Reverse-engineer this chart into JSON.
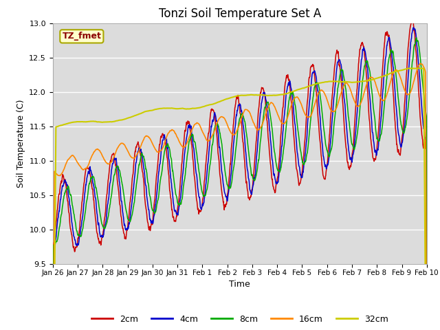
{
  "title": "Tonzi Soil Temperature Set A",
  "xlabel": "Time",
  "ylabel": "Soil Temperature (C)",
  "ylim": [
    9.5,
    13.0
  ],
  "colors": {
    "2cm": "#cc0000",
    "4cm": "#0000cc",
    "8cm": "#00aa00",
    "16cm": "#ff8800",
    "32cm": "#cccc00"
  },
  "plot_bg": "#dcdcdc",
  "annotation_text": "TZ_fmet",
  "annotation_color": "#8b0000",
  "annotation_bg": "#ffffcc",
  "tick_labels": [
    "Jan 26",
    "Jan 27",
    "Jan 28",
    "Jan 29",
    "Jan 30",
    "Jan 31",
    "Feb 1",
    "Feb 2",
    "Feb 3",
    "Feb 4",
    "Feb 5",
    "Feb 6",
    "Feb 7",
    "Feb 8",
    "Feb 9",
    "Feb 10"
  ],
  "yticks": [
    9.5,
    10.0,
    10.5,
    11.0,
    11.5,
    12.0,
    12.5,
    13.0
  ]
}
